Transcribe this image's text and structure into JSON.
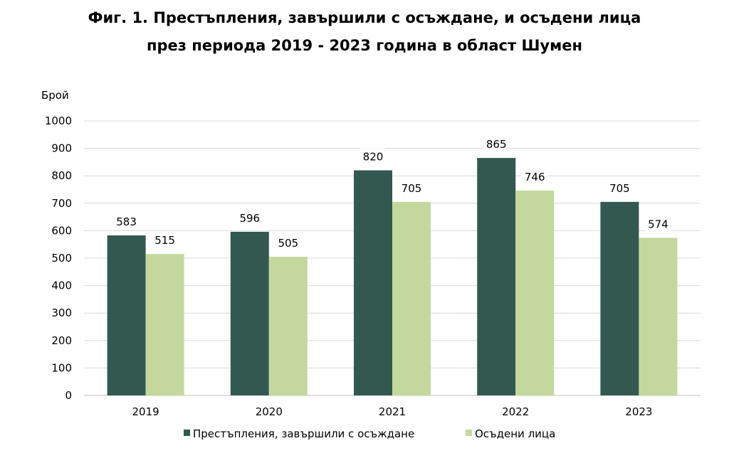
{
  "title": {
    "line1": "Фиг. 1. Престъпления, завършили с осъждане, и осъдени лица",
    "line2": "през периода 2019 - 2023 година в област Шумен"
  },
  "chart_data": {
    "type": "bar",
    "title": "Фиг. 1. Престъпления, завършили с осъждане, и осъдени лица през периода 2019 - 2023 година в област Шумен",
    "ylabel": "Брой",
    "xlabel": "",
    "ylim": [
      0,
      1000
    ],
    "yticks": [
      0,
      100,
      200,
      300,
      400,
      500,
      600,
      700,
      800,
      900,
      1000
    ],
    "categories": [
      "2019",
      "2020",
      "2021",
      "2022",
      "2023"
    ],
    "series": [
      {
        "name": "Престъпления, завършили с осъждане",
        "color": "#33584f",
        "values": [
          583,
          596,
          820,
          865,
          705
        ]
      },
      {
        "name": "Осъдени лица",
        "color": "#c4d89e",
        "values": [
          515,
          505,
          705,
          746,
          574
        ]
      }
    ],
    "grid": true,
    "legend": "bottom",
    "data_labels": true
  }
}
